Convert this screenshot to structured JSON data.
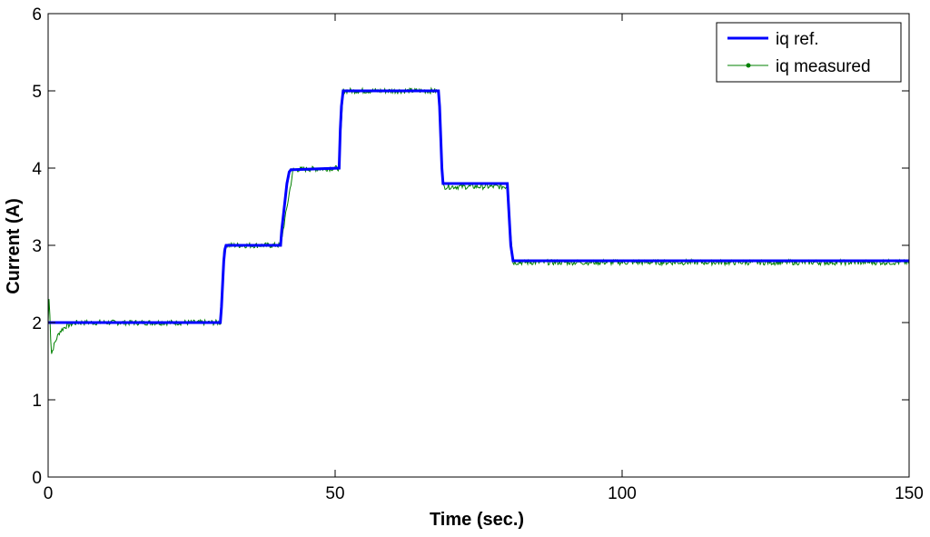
{
  "colors": {
    "reference": "#0000ff",
    "measured": "#008000",
    "axes": "#000000",
    "background": "#ffffff"
  },
  "chart_data": {
    "type": "line",
    "title": "",
    "xlabel": "Time (sec.)",
    "ylabel": "Current (A)",
    "xlim": [
      0,
      150
    ],
    "ylim": [
      0,
      6
    ],
    "x_ticks": [
      0,
      50,
      100,
      150
    ],
    "y_ticks": [
      0,
      1,
      2,
      3,
      4,
      5,
      6
    ],
    "x_tick_labels": [
      "0",
      "50",
      "100",
      "150"
    ],
    "y_tick_labels": [
      "0",
      "1",
      "2",
      "3",
      "4",
      "5",
      "6"
    ],
    "grid": false,
    "legend_position": "top-right",
    "series": [
      {
        "name": "iq ref.",
        "style": "solid thick",
        "x": [
          0,
          30.0,
          30.2,
          30.4,
          30.6,
          30.8,
          31.0,
          40.5,
          40.7,
          41.0,
          41.3,
          41.6,
          42.0,
          42.3,
          42.7,
          50.7,
          50.9,
          51.1,
          51.4,
          68.0,
          68.2,
          68.4,
          68.6,
          68.8,
          80.0,
          80.3,
          80.6,
          81.0,
          150
        ],
        "y": [
          2.0,
          2.0,
          2.2,
          2.5,
          2.8,
          2.95,
          3.0,
          3.0,
          3.2,
          3.4,
          3.6,
          3.8,
          3.95,
          3.98,
          3.98,
          4.0,
          4.5,
          4.8,
          5.0,
          5.0,
          4.8,
          4.4,
          4.0,
          3.8,
          3.8,
          3.4,
          3.0,
          2.8,
          2.8
        ]
      },
      {
        "name": "iq measured",
        "style": "thin with dot markers, noisy",
        "x": [
          0,
          0.2,
          0.4,
          0.6,
          0.8,
          1.0,
          1.5,
          2.0,
          3.0,
          4.0,
          5.0,
          30.0,
          30.6,
          31.0,
          40.5,
          42.7,
          50.7,
          51.4,
          68.0,
          68.8,
          80.0,
          81.0,
          150
        ],
        "y": [
          2.0,
          2.4,
          1.85,
          1.6,
          1.65,
          1.7,
          1.8,
          1.88,
          1.95,
          1.98,
          2.0,
          2.0,
          2.9,
          3.0,
          3.0,
          3.98,
          4.0,
          5.0,
          5.0,
          3.76,
          3.76,
          2.78,
          2.78
        ]
      }
    ]
  }
}
